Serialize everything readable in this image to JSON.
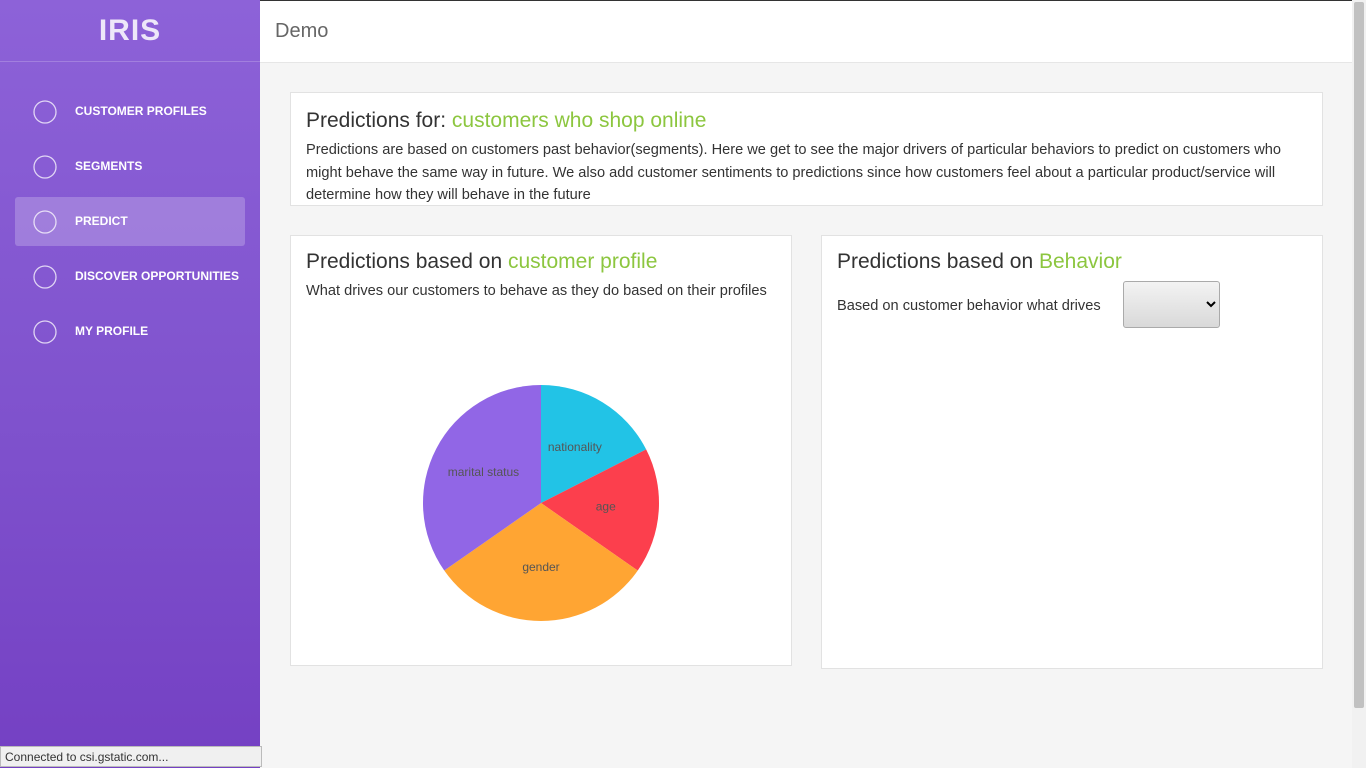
{
  "sidebar": {
    "logo": "IRIS",
    "nav": [
      "CUSTOMER PROFILES",
      "SEGMENTS",
      "PREDICT",
      "DISCOVER OPPORTUNITIES",
      "MY PROFILE"
    ]
  },
  "header": {
    "title": "Demo"
  },
  "intro": {
    "title_prefix": "Predictions for:",
    "title_highlight": "customers who shop online",
    "text": "Predictions are based on customers past behavior(segments). Here we get to see the major drivers of particular behaviors to predict on customers who might behave the same way in future. We also add customer sentiments to predictions since how customers feel about a particular product/service will determine how they will behave in the future"
  },
  "profile_card": {
    "title_prefix": "Predictions based on",
    "title_highlight": "customer profile",
    "text": "What drives our customers to behave as they do based on their profiles"
  },
  "behavior_card": {
    "title_prefix": "Predictions based on",
    "title_highlight": "Behavior",
    "text": "Based on customer behavior what drives"
  },
  "status_bar": {
    "text": "Connected to csi.gstatic.com..."
  },
  "chart_data": {
    "type": "pie",
    "categories": [
      "nationality",
      "age",
      "gender",
      "marital status"
    ],
    "values": [
      17.5,
      17.2,
      30.6,
      34.7
    ],
    "colors": [
      "#22c3e6",
      "#fc3f4d",
      "#ffa533",
      "#9166e6"
    ]
  }
}
